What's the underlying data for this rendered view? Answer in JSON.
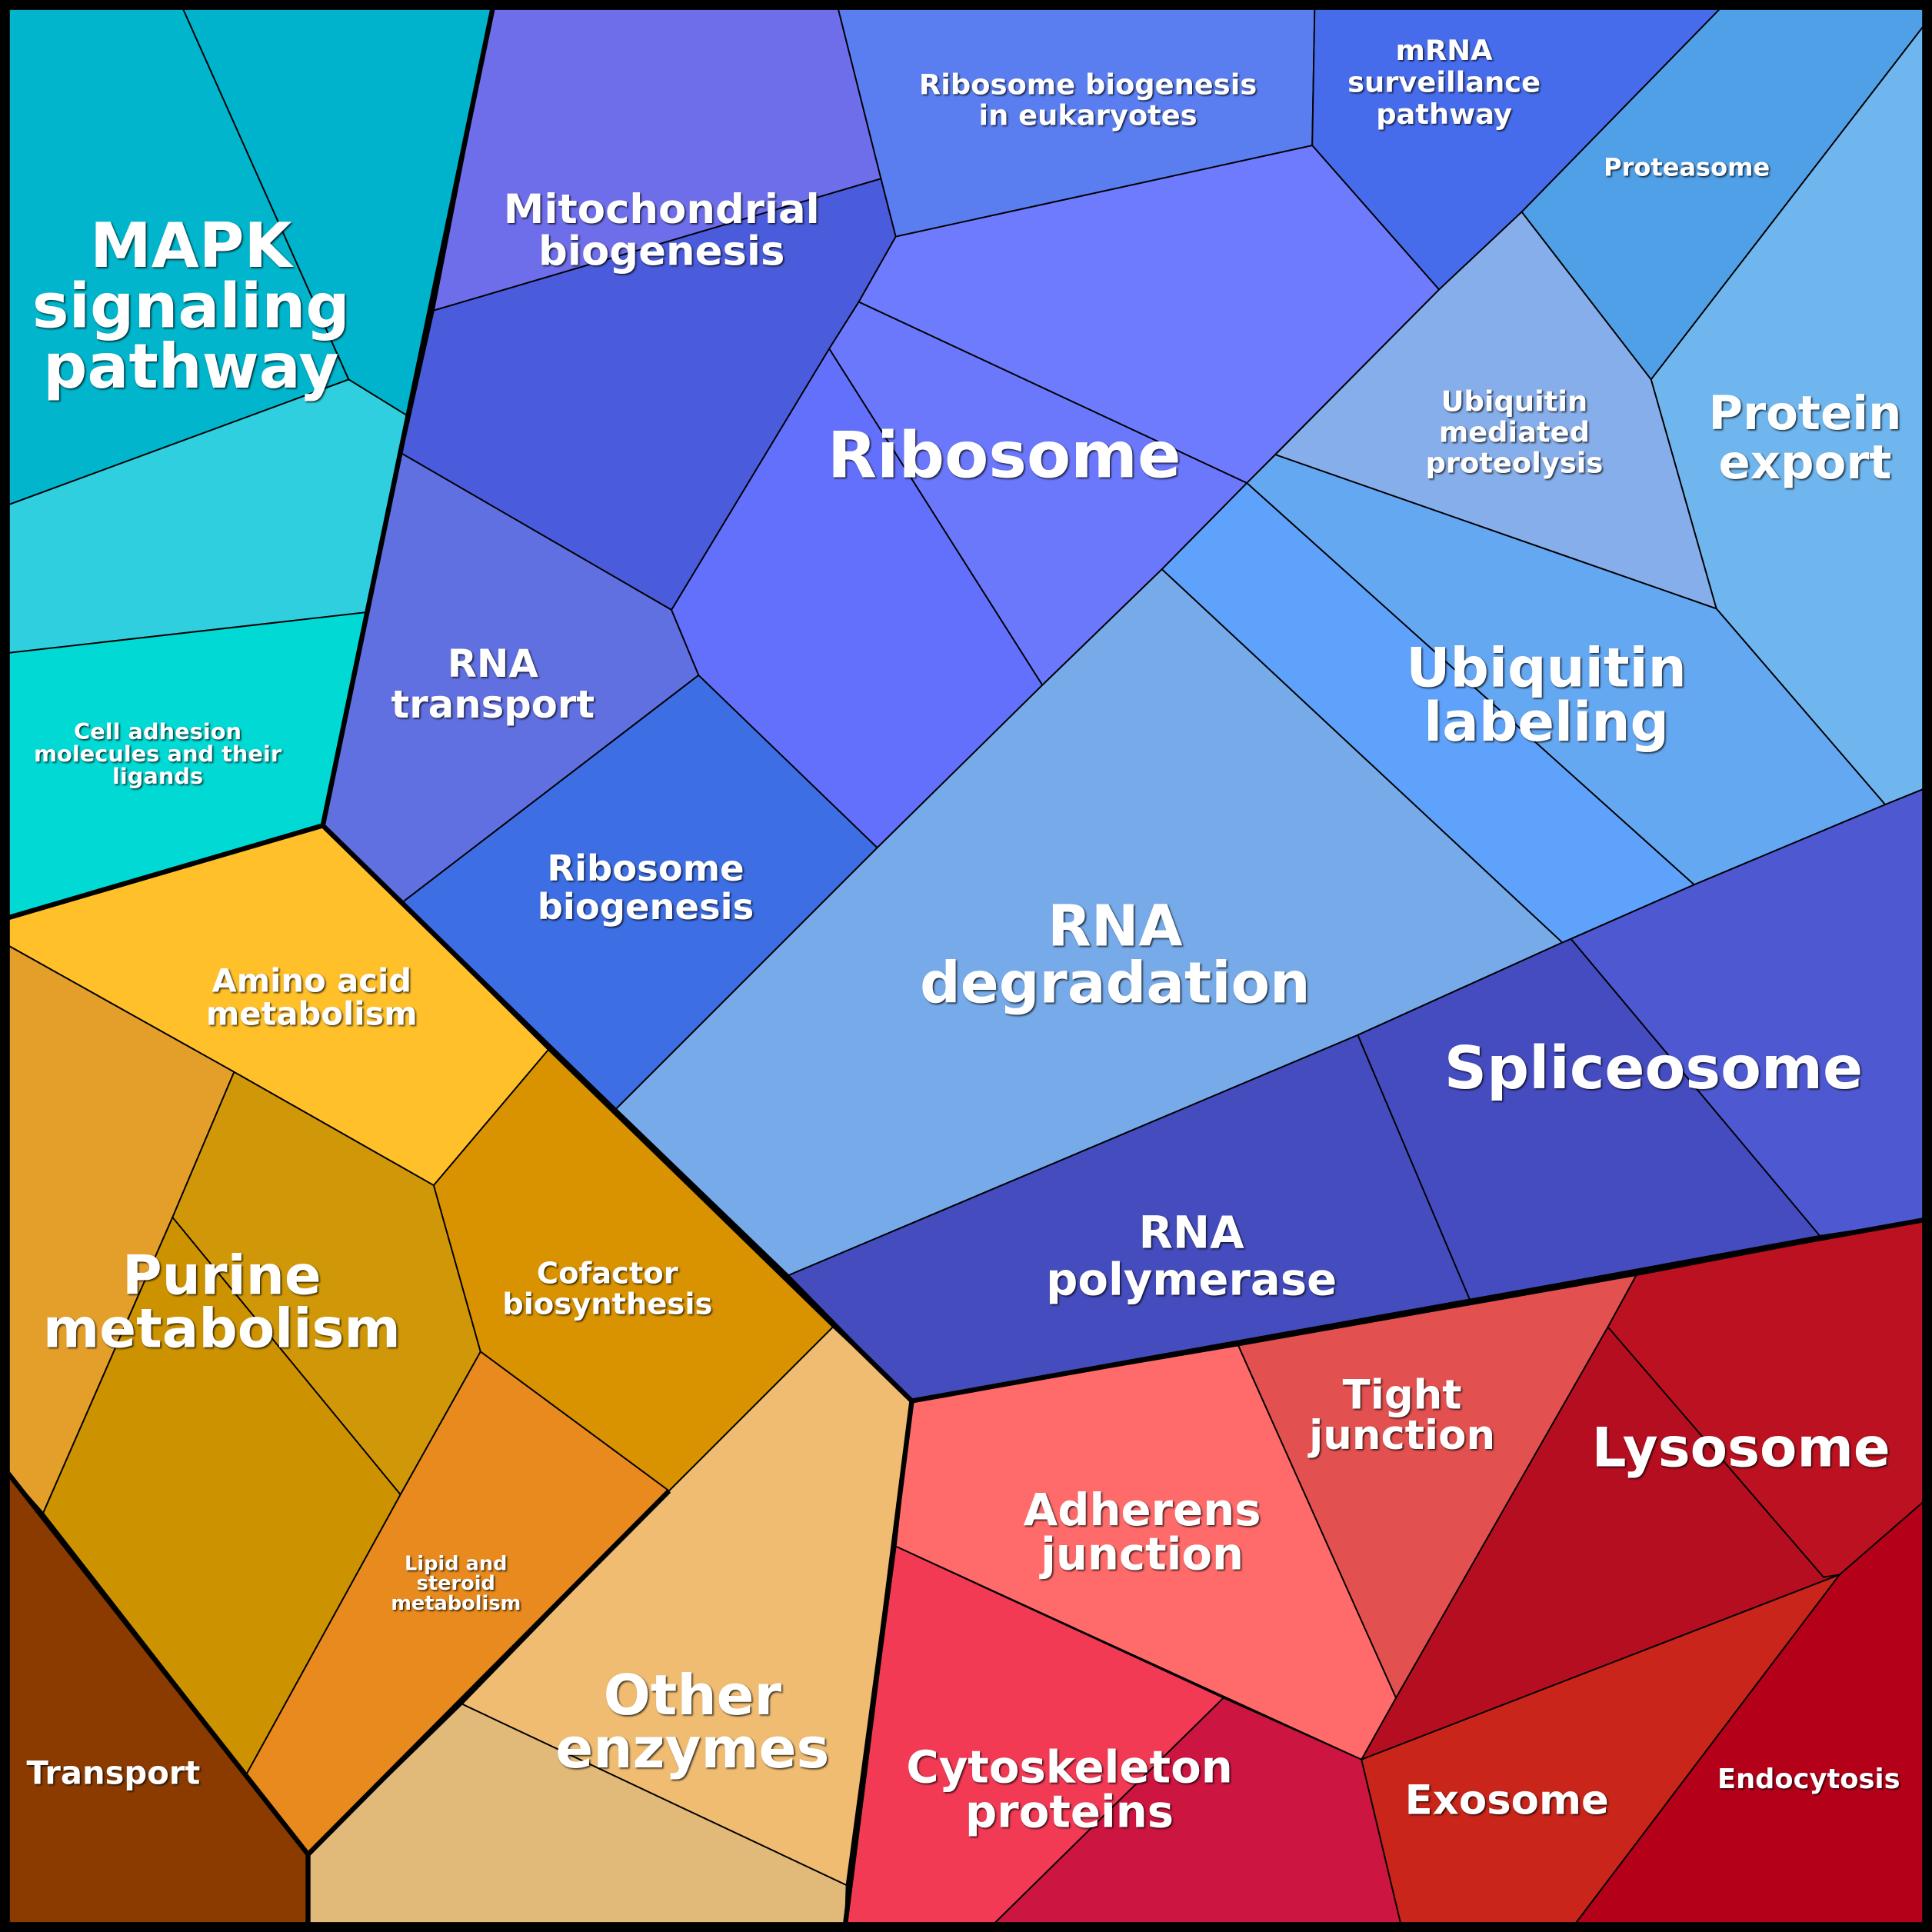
{
  "cells": [
    {
      "label": [
        "MAPK",
        "signaling",
        "pathway"
      ]
    },
    {
      "label": [
        "Mitochondrial",
        "biogenesis"
      ]
    },
    {
      "label": [
        "Ribosome biogenesis",
        "in eukaryotes"
      ]
    },
    {
      "label": [
        "mRNA",
        "surveillance",
        "pathway"
      ]
    },
    {
      "label": [
        "Proteasome"
      ]
    },
    {
      "label": [
        "Ribosome"
      ]
    },
    {
      "label": [
        "Ubiquitin",
        "mediated",
        "proteolysis"
      ]
    },
    {
      "label": [
        "Protein",
        "export"
      ]
    },
    {
      "label": [
        "RNA",
        "transport"
      ]
    },
    {
      "label": [
        "Cell adhesion",
        "molecules and their",
        "ligands"
      ]
    },
    {
      "label": [
        "Ribosome",
        "biogenesis"
      ]
    },
    {
      "label": [
        "Ubiquitin",
        "labeling"
      ]
    },
    {
      "label": [
        "RNA",
        "degradation"
      ]
    },
    {
      "label": [
        "Spliceosome"
      ]
    },
    {
      "label": [
        "Amino acid",
        "metabolism"
      ]
    },
    {
      "label": [
        "Purine",
        "metabolism"
      ]
    },
    {
      "label": [
        "Cofactor",
        "biosynthesis"
      ]
    },
    {
      "label": [
        "RNA",
        "polymerase"
      ]
    },
    {
      "label": [
        "Lipid and",
        "steroid",
        "metabolism"
      ]
    },
    {
      "label": [
        "Tight",
        "junction"
      ]
    },
    {
      "label": [
        "Lysosome"
      ]
    },
    {
      "label": [
        "Adherens",
        "junction"
      ]
    },
    {
      "label": [
        "Other",
        "enzymes"
      ]
    },
    {
      "label": [
        "Transport"
      ]
    },
    {
      "label": [
        "Cytoskeleton",
        "proteins"
      ]
    },
    {
      "label": [
        "Exosome"
      ]
    },
    {
      "label": [
        "Endocytosis"
      ]
    }
  ]
}
